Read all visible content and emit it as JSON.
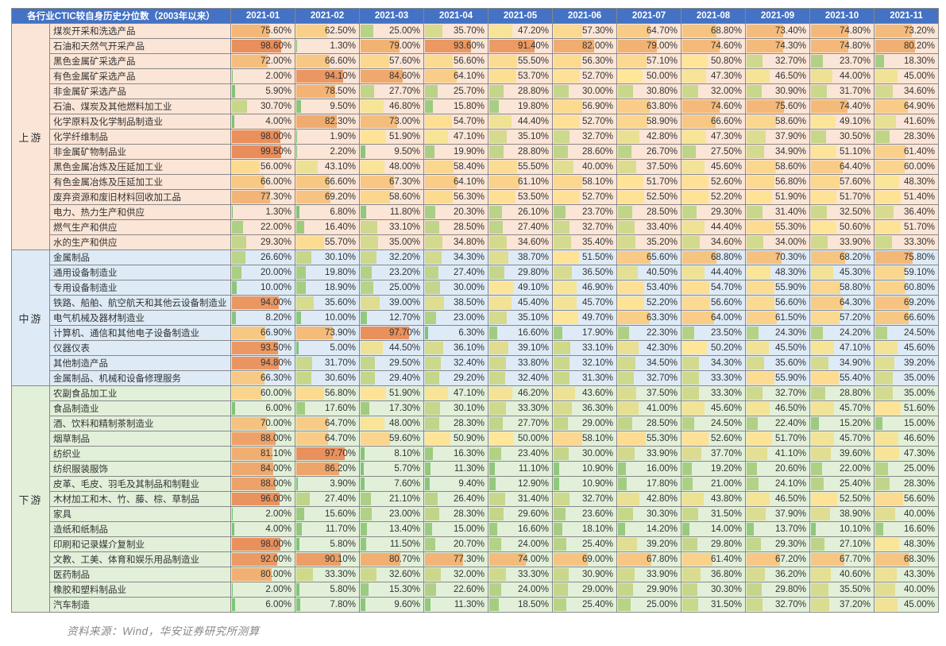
{
  "title_col": "各行业CTIC较自身历史分位数（2003年以来）",
  "months": [
    "2021-01",
    "2021-02",
    "2021-03",
    "2021-04",
    "2021-05",
    "2021-06",
    "2021-07",
    "2021-08",
    "2021-09",
    "2021-10",
    "2021-11"
  ],
  "groups": [
    {
      "name": "上游",
      "bg": "#fbe5d6",
      "rows": [
        {
          "label": "煤炭开采和洗选产品",
          "v": [
            75.6,
            62.5,
            25.0,
            35.7,
            47.2,
            57.3,
            64.7,
            68.8,
            73.4,
            74.8,
            73.2
          ]
        },
        {
          "label": "石油和天然气开采产品",
          "v": [
            98.6,
            1.3,
            79.0,
            93.6,
            91.4,
            82.0,
            79.0,
            74.6,
            74.3,
            74.8,
            80.2
          ]
        },
        {
          "label": "黑色金属矿采选产品",
          "v": [
            72.0,
            66.6,
            57.6,
            56.6,
            55.5,
            56.3,
            57.1,
            50.8,
            32.7,
            23.7,
            18.3
          ]
        },
        {
          "label": "有色金属矿采选产品",
          "v": [
            2.0,
            94.1,
            84.6,
            64.1,
            53.7,
            52.7,
            50.0,
            47.3,
            46.5,
            44.0,
            45.0
          ]
        },
        {
          "label": "非金属矿采选产品",
          "v": [
            5.9,
            78.5,
            27.7,
            25.7,
            28.8,
            30.0,
            30.8,
            32.0,
            30.9,
            31.7,
            34.6
          ]
        },
        {
          "label": "石油、煤炭及其他燃料加工业",
          "v": [
            30.7,
            9.5,
            46.8,
            15.8,
            19.8,
            56.9,
            63.8,
            74.6,
            75.6,
            74.4,
            64.9
          ]
        },
        {
          "label": "化学原料及化学制品制造业",
          "v": [
            4.0,
            82.3,
            73.0,
            54.7,
            44.4,
            52.7,
            58.9,
            66.6,
            58.6,
            49.1,
            41.6
          ]
        },
        {
          "label": "化学纤维制品",
          "v": [
            98.0,
            1.9,
            51.9,
            47.1,
            35.1,
            32.7,
            42.8,
            47.3,
            37.9,
            30.5,
            28.3
          ]
        },
        {
          "label": "非金属矿物制品业",
          "v": [
            99.5,
            2.2,
            9.5,
            19.9,
            28.8,
            28.6,
            26.7,
            27.5,
            34.9,
            51.1,
            61.4
          ]
        },
        {
          "label": "黑色金属冶炼及压延加工业",
          "v": [
            56.0,
            43.1,
            48.0,
            58.4,
            55.5,
            40.0,
            37.5,
            45.6,
            58.6,
            64.4,
            60.0
          ]
        },
        {
          "label": "有色金属冶炼及压延加工业",
          "v": [
            66.0,
            66.6,
            67.3,
            64.1,
            61.1,
            58.1,
            51.7,
            52.6,
            56.8,
            57.6,
            48.3
          ]
        },
        {
          "label": "废弃资源和废旧材料回收加工品",
          "v": [
            77.3,
            69.2,
            58.6,
            56.3,
            53.5,
            52.7,
            52.5,
            52.2,
            51.9,
            51.7,
            51.4
          ]
        },
        {
          "label": "电力、热力生产和供应",
          "v": [
            1.3,
            6.8,
            11.8,
            20.3,
            26.1,
            23.7,
            28.5,
            29.3,
            31.4,
            32.5,
            36.4
          ]
        },
        {
          "label": "燃气生产和供应",
          "v": [
            22.0,
            16.4,
            33.1,
            28.5,
            27.4,
            32.7,
            33.4,
            44.4,
            55.3,
            50.6,
            51.7
          ]
        },
        {
          "label": "水的生产和供应",
          "v": [
            29.3,
            55.7,
            35.0,
            34.8,
            34.6,
            35.4,
            35.2,
            34.6,
            34.0,
            33.9,
            33.3
          ]
        }
      ]
    },
    {
      "name": "中游",
      "bg": "#deebf7",
      "rows": [
        {
          "label": "金属制品",
          "v": [
            26.6,
            30.1,
            32.2,
            34.3,
            38.7,
            51.5,
            65.6,
            68.8,
            70.3,
            68.2,
            75.8
          ]
        },
        {
          "label": "通用设备制造业",
          "v": [
            20.0,
            19.8,
            23.2,
            27.4,
            29.8,
            36.5,
            40.5,
            44.4,
            48.3,
            45.3,
            59.1
          ]
        },
        {
          "label": "专用设备制造业",
          "v": [
            10.0,
            18.9,
            25.0,
            30.0,
            49.1,
            46.9,
            53.4,
            54.7,
            55.9,
            58.8,
            60.8
          ]
        },
        {
          "label": "铁路、船舶、航空航天和其他云设备制造业",
          "v": [
            94.0,
            35.6,
            39.0,
            38.5,
            45.4,
            45.7,
            52.2,
            56.6,
            56.6,
            64.3,
            69.2
          ]
        },
        {
          "label": "电气机械及器材制造业",
          "v": [
            8.2,
            10.0,
            12.7,
            23.0,
            35.1,
            49.7,
            63.3,
            64.0,
            61.5,
            57.2,
            66.6
          ]
        },
        {
          "label": "计算机、通信和其他电子设备制造业",
          "v": [
            66.9,
            73.9,
            97.7,
            6.3,
            16.6,
            17.9,
            22.3,
            23.5,
            24.3,
            24.2,
            24.5
          ]
        },
        {
          "label": "仪器仪表",
          "v": [
            93.5,
            5.0,
            44.5,
            36.1,
            39.1,
            33.1,
            42.3,
            50.2,
            45.5,
            47.1,
            45.6
          ]
        },
        {
          "label": "其他制造产品",
          "v": [
            94.8,
            31.7,
            29.5,
            32.4,
            33.8,
            32.1,
            34.5,
            34.3,
            35.6,
            34.9,
            39.2
          ]
        },
        {
          "label": "金属制品、机械和设备修理服务",
          "v": [
            66.3,
            30.6,
            29.4,
            29.2,
            32.4,
            31.3,
            32.7,
            33.3,
            55.9,
            55.4,
            35.0
          ]
        }
      ]
    },
    {
      "name": "下游",
      "bg": "#e2f0da",
      "rows": [
        {
          "label": "农副食品加工业",
          "v": [
            60.0,
            56.8,
            51.9,
            47.1,
            46.2,
            43.6,
            37.5,
            33.3,
            32.7,
            28.8,
            35.0
          ]
        },
        {
          "label": "食品制造业",
          "v": [
            6.0,
            17.6,
            17.3,
            30.1,
            33.3,
            36.3,
            41.0,
            45.6,
            46.5,
            45.7,
            51.6
          ]
        },
        {
          "label": "酒、饮料和精制茶制造业",
          "v": [
            70.0,
            64.7,
            48.0,
            28.3,
            27.7,
            29.0,
            28.5,
            24.5,
            22.4,
            15.2,
            15.0
          ]
        },
        {
          "label": "烟草制品",
          "v": [
            88.0,
            64.7,
            59.6,
            50.9,
            50.0,
            58.1,
            55.3,
            52.6,
            51.7,
            45.7,
            46.6
          ]
        },
        {
          "label": "纺织业",
          "v": [
            81.1,
            97.7,
            8.1,
            16.3,
            23.4,
            30.0,
            33.9,
            37.7,
            41.1,
            39.6,
            47.3
          ]
        },
        {
          "label": "纺织服装服饰",
          "v": [
            84.0,
            86.2,
            5.7,
            11.3,
            11.1,
            10.9,
            16.0,
            19.2,
            20.6,
            22.0,
            25.0
          ]
        },
        {
          "label": "皮革、毛皮、羽毛及其制品和制鞋业",
          "v": [
            88.0,
            3.9,
            7.6,
            9.4,
            12.9,
            10.9,
            17.8,
            21.0,
            24.1,
            25.4,
            28.3
          ]
        },
        {
          "label": "木材加工和木、竹、藤、棕、草制品",
          "v": [
            96.0,
            27.4,
            21.1,
            26.4,
            31.4,
            32.7,
            42.8,
            43.8,
            46.5,
            52.5,
            56.6
          ]
        },
        {
          "label": "家具",
          "v": [
            2.0,
            15.6,
            23.0,
            28.3,
            29.6,
            23.6,
            30.3,
            31.5,
            37.9,
            38.9,
            40.0
          ]
        },
        {
          "label": "造纸和纸制品",
          "v": [
            4.0,
            11.7,
            13.4,
            15.0,
            16.6,
            18.1,
            14.2,
            14.0,
            13.7,
            10.1,
            16.6
          ]
        },
        {
          "label": "印刷和记录媒介复制业",
          "v": [
            98.0,
            5.8,
            11.5,
            20.7,
            24.0,
            25.4,
            39.2,
            29.8,
            29.3,
            27.1,
            48.3
          ]
        },
        {
          "label": "文教、工美、体育和娱乐用品制造业",
          "v": [
            92.0,
            90.1,
            80.7,
            77.3,
            74.0,
            69.0,
            67.8,
            61.4,
            67.2,
            67.7,
            68.3
          ]
        },
        {
          "label": "医药制品",
          "v": [
            80.0,
            33.3,
            32.6,
            32.0,
            33.3,
            30.9,
            33.9,
            36.8,
            36.2,
            40.6,
            43.3
          ]
        },
        {
          "label": "橡胶和塑料制品业",
          "v": [
            2.0,
            5.8,
            15.3,
            22.6,
            24.0,
            29.0,
            29.9,
            30.3,
            29.8,
            35.5,
            40.0
          ]
        },
        {
          "label": "汽车制造",
          "v": [
            6.0,
            7.8,
            9.6,
            11.3,
            18.5,
            25.4,
            25.0,
            31.5,
            32.7,
            37.2,
            45.0
          ]
        }
      ]
    }
  ],
  "gradient": {
    "low": "#6fbf73",
    "mid": "#ffe699",
    "high": "#e88c5a",
    "lowStop": 25,
    "highStop": 75
  },
  "source": "资料来源：Wind，华安证券研究所测算"
}
